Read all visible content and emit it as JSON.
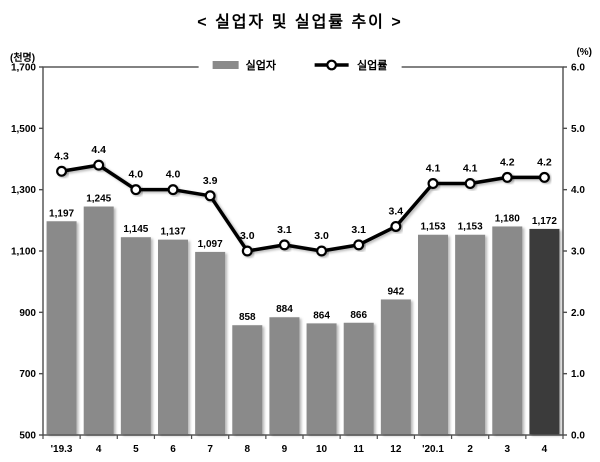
{
  "title": "< 실업자 및 실업률 추이 >",
  "axes": {
    "left_unit": "(천명)",
    "right_unit": "(%)"
  },
  "legend": {
    "items": [
      {
        "label": "실업자",
        "type": "bar"
      },
      {
        "label": "실업률",
        "type": "line"
      }
    ]
  },
  "chart_data": {
    "type": "bar",
    "subtype": "bar+line combo",
    "title": "< 실업자 및 실업률 추이 >",
    "categories": [
      "'19.3",
      "4",
      "5",
      "6",
      "7",
      "8",
      "9",
      "10",
      "11",
      "12",
      "'20.1",
      "2",
      "3",
      "4"
    ],
    "series": [
      {
        "name": "실업자",
        "type": "bar",
        "axis": "left",
        "values": [
          1197,
          1245,
          1145,
          1137,
          1097,
          858,
          884,
          864,
          866,
          942,
          1153,
          1153,
          1180,
          1172
        ]
      },
      {
        "name": "실업률",
        "type": "line",
        "axis": "right",
        "values": [
          4.3,
          4.4,
          4.0,
          4.0,
          3.9,
          3.0,
          3.1,
          3.0,
          3.1,
          3.4,
          4.1,
          4.1,
          4.2,
          4.2
        ]
      }
    ],
    "left_axis": {
      "unit": "(천명)",
      "min": 500,
      "max": 1700,
      "ticks": [
        1700,
        1500,
        1300,
        1100,
        900,
        700,
        500
      ]
    },
    "right_axis": {
      "unit": "(%)",
      "min": 0.0,
      "max": 6.0,
      "ticks": [
        6.0,
        5.0,
        4.0,
        3.0,
        2.0,
        1.0,
        0.0
      ]
    },
    "highlight_index": 13,
    "grid": false,
    "legend_position": "top-center",
    "colors": {
      "bar": "#8a8a8a",
      "highlight_bar": "#3a3a3a",
      "line": "#000000",
      "marker_fill": "#ffffff",
      "axis": "#4d4d4d",
      "text": "#000000"
    }
  }
}
